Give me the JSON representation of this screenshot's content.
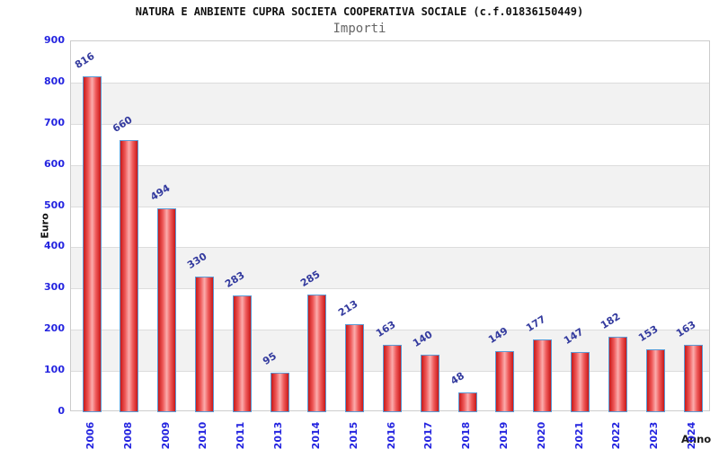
{
  "title": "NATURA E ANBIENTE CUPRA SOCIETA COOPERATIVA SOCIALE (c.f.01836150449)",
  "subtitle": "Importi",
  "chart_data": {
    "type": "bar",
    "title": "Importi",
    "categories": [
      "2006",
      "2008",
      "2009",
      "2010",
      "2011",
      "2013",
      "2014",
      "2015",
      "2016",
      "2017",
      "2018",
      "2019",
      "2020",
      "2021",
      "2022",
      "2023",
      "2024"
    ],
    "values": [
      816,
      660,
      494,
      330,
      283,
      95,
      285,
      213,
      163,
      140,
      48,
      149,
      177,
      147,
      182,
      153,
      163
    ],
    "xlabel": "Anno",
    "ylabel": "Euro",
    "ylim": [
      0,
      900
    ],
    "yticks": [
      0,
      100,
      200,
      300,
      400,
      500,
      600,
      700,
      800,
      900
    ],
    "grid": true,
    "legend_position": "none",
    "colors": {
      "bar_edge": "#c81919",
      "bar_mid": "#ef5a5a",
      "bar_highlight": "#fbadad",
      "bar_border": "#5b9bd5",
      "axis_tick_label": "#2424e0",
      "value_label": "#333a9e",
      "band_fill": "#f2f2f2",
      "gridline": "#dcdcdc",
      "plot_border": "#cccccc",
      "title_color": "#111111",
      "subtitle_color": "#666666"
    }
  }
}
